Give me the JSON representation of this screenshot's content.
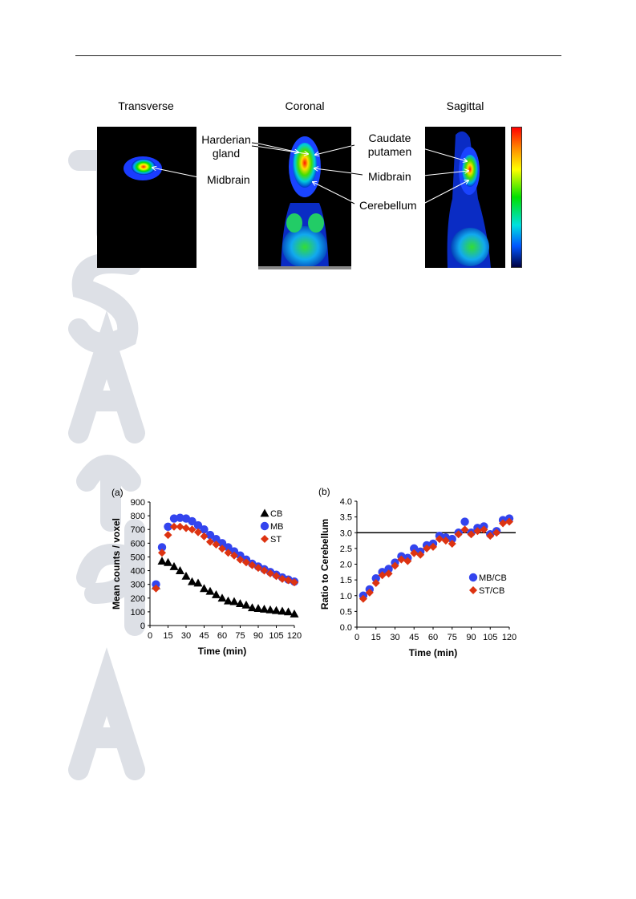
{
  "images": {
    "panel_titles": [
      "Transverse",
      "Coronal",
      "Sagittal"
    ],
    "annotations": {
      "harderian": [
        "Harderian",
        "gland"
      ],
      "midbrain_transverse": "Midbrain",
      "caudate": [
        "Caudate",
        "putamen"
      ],
      "midbrain_sagittal": "Midbrain",
      "cerebellum": "Cerebellum"
    }
  },
  "chart_data": [
    {
      "type": "scatter",
      "panel_label": "(a)",
      "xlabel": "Time (min)",
      "ylabel": "Mean counts / voxel",
      "xlim": [
        0,
        120
      ],
      "ylim": [
        0,
        900
      ],
      "xticks": [
        0,
        15,
        30,
        45,
        60,
        75,
        90,
        105,
        120
      ],
      "yticks": [
        0,
        100,
        200,
        300,
        400,
        500,
        600,
        700,
        800,
        900
      ],
      "legend_position": "top-right",
      "series": [
        {
          "name": "CB",
          "color": "#000000",
          "marker": "triangle",
          "x": [
            5,
            10,
            15,
            20,
            25,
            30,
            35,
            40,
            45,
            50,
            55,
            60,
            65,
            70,
            75,
            80,
            85,
            90,
            95,
            100,
            105,
            110,
            115,
            120
          ],
          "y": [
            290,
            470,
            460,
            430,
            400,
            360,
            320,
            310,
            270,
            250,
            225,
            200,
            180,
            175,
            160,
            150,
            130,
            125,
            120,
            115,
            110,
            105,
            100,
            85
          ]
        },
        {
          "name": "MB",
          "color": "#3344ee",
          "marker": "circle",
          "x": [
            5,
            10,
            15,
            20,
            25,
            30,
            35,
            40,
            45,
            50,
            55,
            60,
            65,
            70,
            75,
            80,
            85,
            90,
            95,
            100,
            105,
            110,
            115,
            120
          ],
          "y": [
            300,
            570,
            720,
            780,
            785,
            780,
            760,
            730,
            700,
            660,
            630,
            600,
            570,
            540,
            510,
            480,
            450,
            430,
            410,
            390,
            370,
            350,
            335,
            320
          ]
        },
        {
          "name": "ST",
          "color": "#dd3311",
          "marker": "diamond",
          "x": [
            5,
            10,
            15,
            20,
            25,
            30,
            35,
            40,
            45,
            50,
            55,
            60,
            65,
            70,
            75,
            80,
            85,
            90,
            95,
            100,
            105,
            110,
            115,
            120
          ],
          "y": [
            270,
            530,
            660,
            720,
            720,
            710,
            700,
            680,
            650,
            610,
            590,
            560,
            530,
            510,
            480,
            460,
            440,
            420,
            400,
            380,
            360,
            340,
            330,
            315
          ]
        }
      ]
    },
    {
      "type": "scatter",
      "panel_label": "(b)",
      "xlabel": "Time (min)",
      "ylabel": "Ratio to Cerebellum",
      "xlim": [
        0,
        120
      ],
      "ylim": [
        0,
        4
      ],
      "xticks": [
        0,
        15,
        30,
        45,
        60,
        75,
        90,
        105,
        120
      ],
      "yticks": [
        "0.0",
        "0.5",
        "1.0",
        "1.5",
        "2.0",
        "2.5",
        "3.0",
        "3.5",
        "4.0"
      ],
      "reference_line": 3.0,
      "legend_position": "bottom-right",
      "series": [
        {
          "name": "MB/CB",
          "color": "#3344ee",
          "marker": "circle",
          "x": [
            5,
            10,
            15,
            20,
            25,
            30,
            35,
            40,
            45,
            50,
            55,
            60,
            65,
            70,
            75,
            80,
            85,
            90,
            95,
            100,
            105,
            110,
            115,
            120
          ],
          "y": [
            1.0,
            1.2,
            1.55,
            1.75,
            1.85,
            2.05,
            2.25,
            2.2,
            2.5,
            2.4,
            2.6,
            2.65,
            2.9,
            2.85,
            2.8,
            3.0,
            3.35,
            3.0,
            3.15,
            3.2,
            2.95,
            3.05,
            3.4,
            3.45
          ]
        },
        {
          "name": "ST/CB",
          "color": "#dd3311",
          "marker": "diamond",
          "x": [
            5,
            10,
            15,
            20,
            25,
            30,
            35,
            40,
            45,
            50,
            55,
            60,
            65,
            70,
            75,
            80,
            85,
            90,
            95,
            100,
            105,
            110,
            115,
            120
          ],
          "y": [
            0.9,
            1.1,
            1.4,
            1.65,
            1.7,
            1.95,
            2.15,
            2.1,
            2.35,
            2.3,
            2.5,
            2.55,
            2.8,
            2.75,
            2.65,
            2.95,
            3.1,
            2.95,
            3.05,
            3.1,
            2.9,
            3.0,
            3.3,
            3.35
          ]
        }
      ]
    }
  ]
}
